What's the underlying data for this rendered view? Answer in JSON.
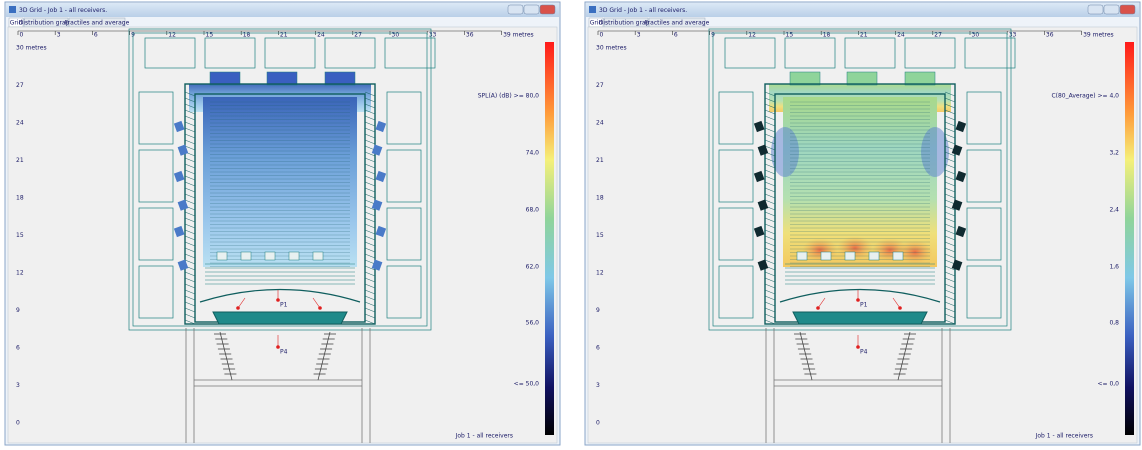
{
  "windows": [
    {
      "title": "3D Grid - Job 1 - all receivers.",
      "tabs": [
        "Grid",
        "Distribution graph",
        "Fractiles and average"
      ],
      "x_axis_labels": [
        "0",
        "3",
        "6",
        "9",
        "12",
        "15",
        "18",
        "21",
        "24",
        "27",
        "30",
        "33",
        "36",
        "39 metres"
      ],
      "y_axis_labels": [
        "30 metres",
        "27",
        "24",
        "21",
        "18",
        "15",
        "12",
        "9",
        "6",
        "3",
        "0"
      ],
      "scale_labels": [
        "SPL(A) (dB) >= 80,0",
        "74,0",
        "68,0",
        "62,0",
        "56,0",
        "<= 50,0"
      ],
      "receivers": [
        "P1",
        "P4"
      ],
      "footer": "Job 1 - all receivers"
    },
    {
      "title": "3D Grid - Job 1 - all receivers.",
      "tabs": [
        "Grid",
        "Distribution graph",
        "Fractiles and average"
      ],
      "x_axis_labels": [
        "0",
        "3",
        "6",
        "9",
        "12",
        "15",
        "18",
        "21",
        "24",
        "27",
        "30",
        "33",
        "36",
        "39 metres"
      ],
      "y_axis_labels": [
        "30 metres",
        "27",
        "24",
        "21",
        "18",
        "15",
        "12",
        "9",
        "6",
        "3",
        "0"
      ],
      "scale_labels": [
        "C(80_Average) >= 4,0",
        "3,2",
        "2,4",
        "1,6",
        "0,8",
        "<= 0,0"
      ],
      "receivers": [
        "P1",
        "P4"
      ],
      "footer": "Job 1 - all receivers"
    }
  ]
}
